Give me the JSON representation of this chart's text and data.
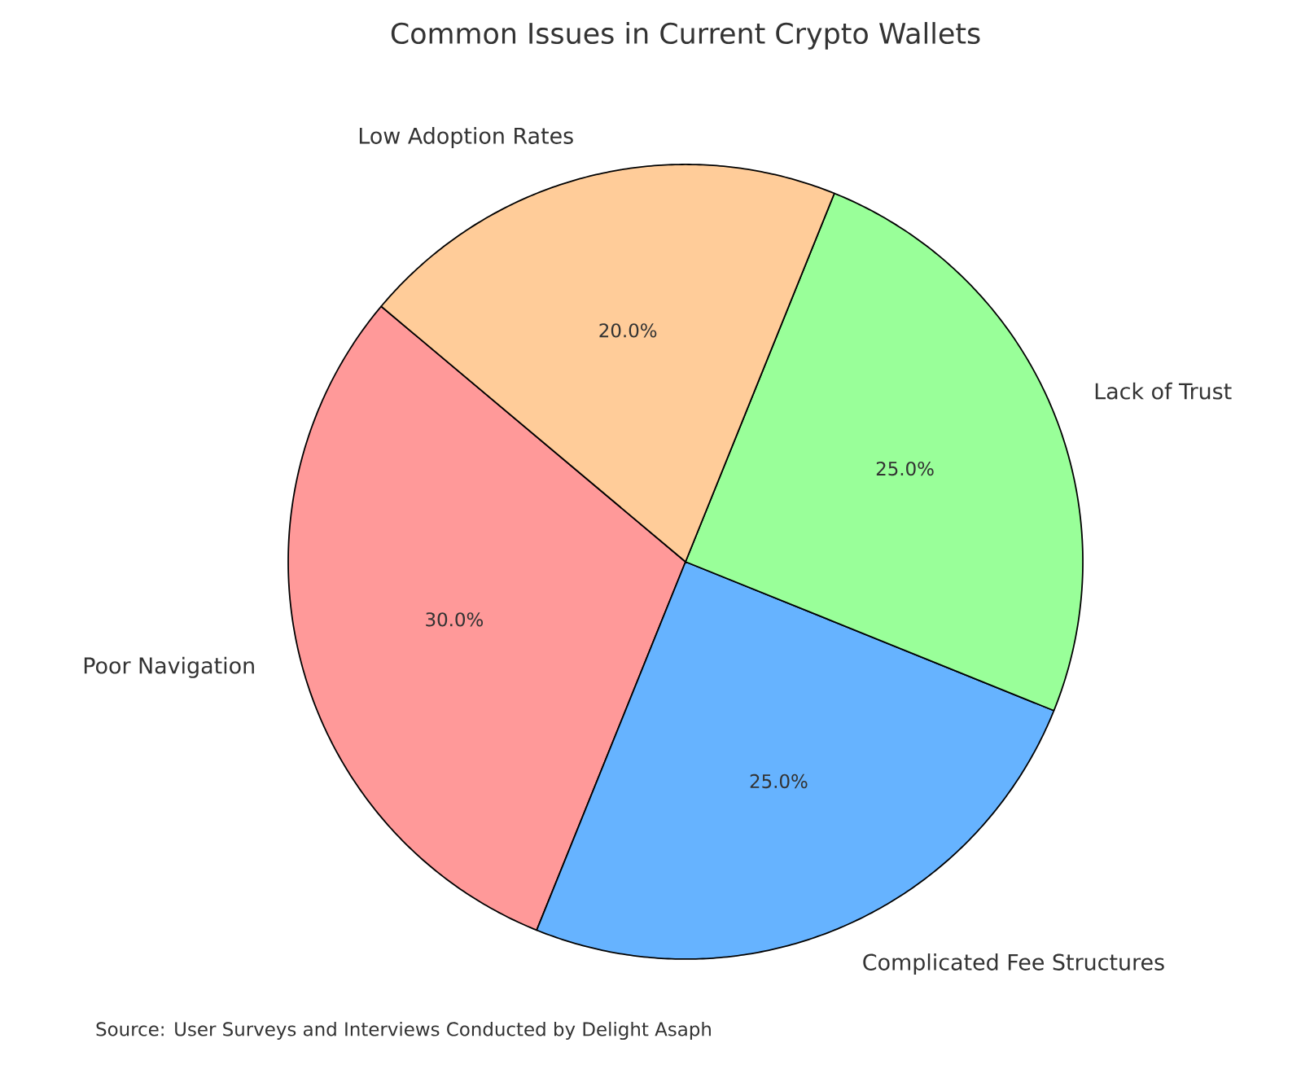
{
  "chart_data": {
    "type": "pie",
    "title": "Common Issues in Current Crypto Wallets",
    "categories": [
      "Poor Navigation",
      "Complicated Fee Structures",
      "Lack of Trust",
      "Low Adoption Rates"
    ],
    "values": [
      30,
      25,
      25,
      20
    ],
    "value_labels": [
      "30.0%",
      "25.0%",
      "25.0%",
      "20.0%"
    ],
    "colors": [
      "#ff9999",
      "#66b3ff",
      "#99ff99",
      "#ffcc99"
    ],
    "annotations": [
      "Source: User Surveys and Interviews Conducted by Delight Asaph"
    ]
  }
}
